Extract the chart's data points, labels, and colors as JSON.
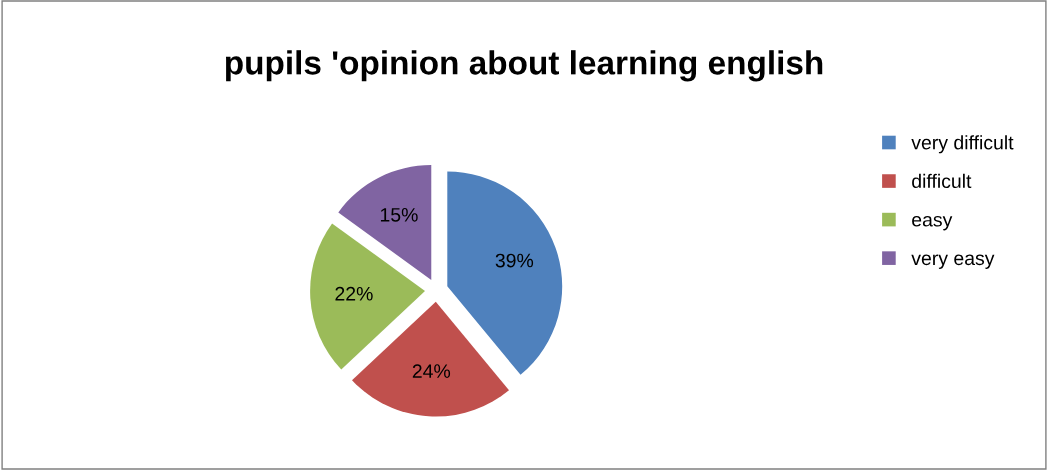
{
  "chart_data": {
    "type": "pie",
    "title": "pupils 'opinion about learning english",
    "categories": [
      "very difficult",
      "difficult",
      "easy",
      "very easy"
    ],
    "values": [
      39,
      24,
      22,
      15
    ],
    "colors": [
      "#4f81bd",
      "#c0504d",
      "#9bbb59",
      "#8064a2"
    ],
    "value_labels": [
      "39%",
      "24%",
      "22%",
      "15%"
    ],
    "legend": "right"
  }
}
